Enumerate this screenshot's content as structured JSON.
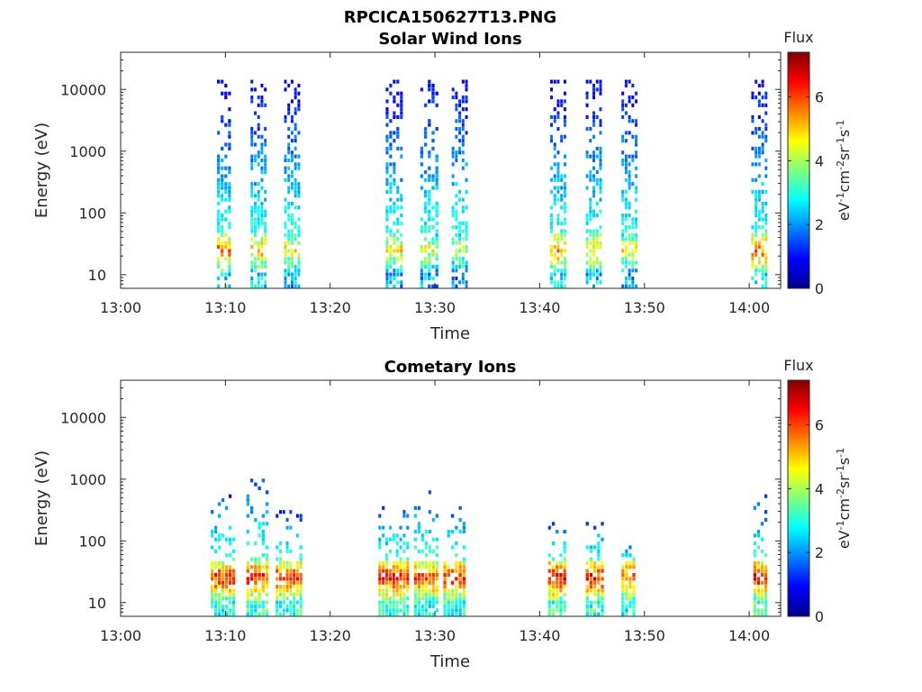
{
  "figure": {
    "main_title": "RPCICA150627T13.PNG"
  },
  "panels": [
    {
      "title": "Solar Wind Ions",
      "xlabel": "Time",
      "ylabel": "Energy (eV)",
      "colorbar_title": "Flux",
      "colorbar_label": "eV-1cm-2sr-1s-1"
    },
    {
      "title": "Cometary Ions",
      "xlabel": "Time",
      "ylabel": "Energy (eV)",
      "colorbar_title": "Flux",
      "colorbar_label": "eV-1cm-2sr-1s-1"
    }
  ],
  "chart_data": [
    {
      "type": "heatmap",
      "title": "Solar Wind Ions",
      "xlabel": "Time",
      "ylabel": "Energy (eV)",
      "x_ticks": [
        "13:00",
        "13:10",
        "13:20",
        "13:30",
        "13:40",
        "13:50",
        "14:00"
      ],
      "xlim": [
        "13:00",
        "14:03"
      ],
      "y_scale": "log",
      "y_ticks": [
        10,
        100,
        1000,
        10000
      ],
      "ylim": [
        6,
        40000
      ],
      "colorbar": {
        "label": "Flux",
        "unit": "eV-1cm-2sr-1s-1",
        "ticks": [
          0,
          2,
          4,
          6
        ],
        "range": [
          0,
          7.4
        ],
        "colormap": "jet"
      },
      "bursts": [
        {
          "start_min": 9.2,
          "end_min": 10.6,
          "max_energy_ev": 14000,
          "peak_flux": 6.5
        },
        {
          "start_min": 12.4,
          "end_min": 14.0,
          "max_energy_ev": 14000,
          "peak_flux": 6.0
        },
        {
          "start_min": 15.6,
          "end_min": 17.2,
          "max_energy_ev": 14000,
          "peak_flux": 5.5
        },
        {
          "start_min": 25.3,
          "end_min": 27.0,
          "max_energy_ev": 14000,
          "peak_flux": 5.6
        },
        {
          "start_min": 28.6,
          "end_min": 30.4,
          "max_energy_ev": 14000,
          "peak_flux": 5.3
        },
        {
          "start_min": 31.6,
          "end_min": 33.2,
          "max_energy_ev": 14000,
          "peak_flux": 5.0
        },
        {
          "start_min": 41.0,
          "end_min": 42.6,
          "max_energy_ev": 14000,
          "peak_flux": 6.2
        },
        {
          "start_min": 44.4,
          "end_min": 46.0,
          "max_energy_ev": 14000,
          "peak_flux": 5.8
        },
        {
          "start_min": 47.8,
          "end_min": 49.4,
          "max_energy_ev": 14000,
          "peak_flux": 5.4
        },
        {
          "start_min": 60.2,
          "end_min": 61.8,
          "max_energy_ev": 14000,
          "peak_flux": 6.6
        }
      ]
    },
    {
      "type": "heatmap",
      "title": "Cometary Ions",
      "xlabel": "Time",
      "ylabel": "Energy (eV)",
      "x_ticks": [
        "13:00",
        "13:10",
        "13:20",
        "13:30",
        "13:40",
        "13:50",
        "14:00"
      ],
      "xlim": [
        "13:00",
        "14:03"
      ],
      "y_scale": "log",
      "y_ticks": [
        10,
        100,
        1000,
        10000
      ],
      "ylim": [
        6,
        40000
      ],
      "colorbar": {
        "label": "Flux",
        "unit": "eV-1cm-2sr-1s-1",
        "ticks": [
          0,
          2,
          4,
          6
        ],
        "range": [
          0,
          7.4
        ],
        "colormap": "jet"
      },
      "bursts": [
        {
          "start_min": 8.6,
          "end_min": 11.0,
          "max_energy_ev": 600,
          "peak_flux": 7.0
        },
        {
          "start_min": 12.0,
          "end_min": 14.2,
          "max_energy_ev": 1500,
          "peak_flux": 7.2
        },
        {
          "start_min": 14.8,
          "end_min": 17.4,
          "max_energy_ev": 300,
          "peak_flux": 7.0
        },
        {
          "start_min": 24.6,
          "end_min": 27.6,
          "max_energy_ev": 350,
          "peak_flux": 7.2
        },
        {
          "start_min": 28.0,
          "end_min": 30.4,
          "max_energy_ev": 1000,
          "peak_flux": 6.8
        },
        {
          "start_min": 30.8,
          "end_min": 33.0,
          "max_energy_ev": 450,
          "peak_flux": 7.0
        },
        {
          "start_min": 40.8,
          "end_min": 42.6,
          "max_energy_ev": 250,
          "peak_flux": 7.3
        },
        {
          "start_min": 44.4,
          "end_min": 46.2,
          "max_energy_ev": 250,
          "peak_flux": 7.2
        },
        {
          "start_min": 47.8,
          "end_min": 49.2,
          "max_energy_ev": 100,
          "peak_flux": 6.8
        },
        {
          "start_min": 60.4,
          "end_min": 61.8,
          "max_energy_ev": 550,
          "peak_flux": 7.2
        }
      ]
    }
  ]
}
